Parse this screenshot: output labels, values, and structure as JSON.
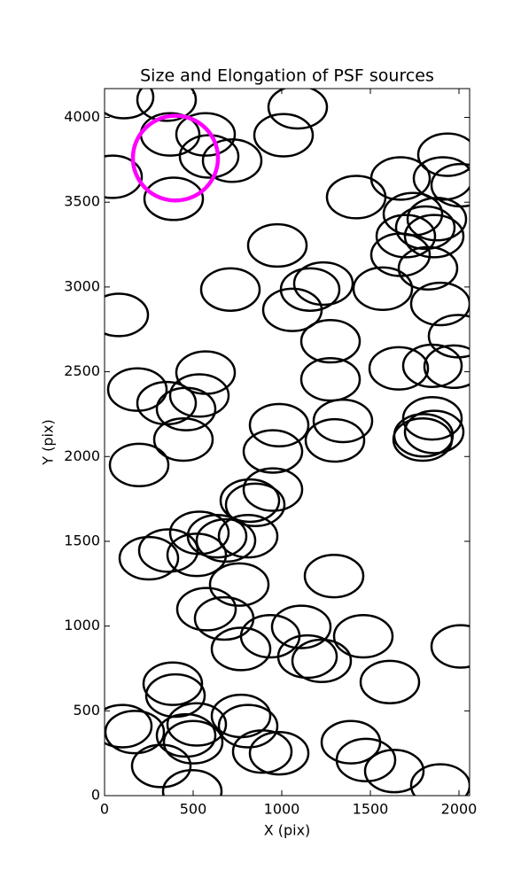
{
  "chart_data": {
    "type": "ellipse",
    "title": "Size and Elongation of PSF sources",
    "x_label": "X (pix)",
    "y_label": "Y (pix)",
    "xlim": [
      0,
      2060
    ],
    "ylim": [
      0,
      4170
    ],
    "xticks": [
      0,
      500,
      1000,
      1500,
      2000
    ],
    "yticks": [
      0,
      500,
      1000,
      1500,
      2000,
      2500,
      3000,
      3500,
      4000
    ],
    "series": [
      {
        "color": "#000000",
        "width": 330,
        "height": 250,
        "x": [
          110,
          350,
          370,
          570,
          590,
          720,
          45,
          390,
          1090,
          1010,
          975,
          710,
          80,
          1160,
          1235,
          1060,
          1275,
          1275,
          1345,
          1300,
          985,
          950,
          1420,
          1670,
          1935,
          1910,
          2010,
          1740,
          1810,
          1875,
          1700,
          1860,
          1670,
          1825,
          1570,
          1895,
          1995,
          1660,
          1850,
          1970,
          1850,
          1860,
          1800,
          1795,
          185,
          350,
          570,
          535,
          460,
          445,
          195,
          820,
          850,
          950,
          250,
          360,
          520,
          535,
          635,
          685,
          810,
          760,
          575,
          675,
          1295,
          1110,
          935,
          770,
          1145,
          1225,
          1460,
          1610,
          2010,
          385,
          400,
          100,
          170,
          320,
          460,
          520,
          500,
          770,
          810,
          890,
          985,
          495,
          1390,
          1475,
          1635,
          1895
        ],
        "values": [
          4120,
          4105,
          3900,
          3900,
          3770,
          3745,
          3650,
          3520,
          4060,
          3895,
          3245,
          2985,
          2835,
          2985,
          3020,
          2865,
          2680,
          2455,
          2210,
          2095,
          2185,
          2030,
          3530,
          3640,
          3780,
          3640,
          3600,
          3430,
          3350,
          3400,
          3300,
          3300,
          3190,
          3110,
          2990,
          2900,
          2710,
          2520,
          2535,
          2530,
          2225,
          2145,
          2125,
          2100,
          2395,
          2315,
          2495,
          2360,
          2280,
          2100,
          1950,
          1740,
          1715,
          1805,
          1400,
          1445,
          1420,
          1550,
          1530,
          1505,
          1530,
          1245,
          1100,
          1045,
          1295,
          995,
          940,
          865,
          820,
          795,
          940,
          670,
          880,
          660,
          590,
          410,
          375,
          175,
          355,
          420,
          315,
          470,
          410,
          260,
          250,
          25,
          315,
          210,
          145,
          60
        ]
      },
      {
        "color": "#ff00ff",
        "width": 480,
        "height": 500,
        "x": [
          400
        ],
        "values": [
          3760
        ]
      }
    ]
  }
}
